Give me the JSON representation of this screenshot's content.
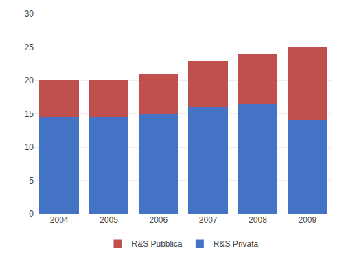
{
  "chart_data": {
    "type": "bar",
    "categories": [
      "2004",
      "2005",
      "2006",
      "2007",
      "2008",
      "2009"
    ],
    "series": [
      {
        "name": "R&S Privata",
        "color": "#4472C4",
        "values": [
          14.5,
          14.5,
          15.0,
          16.0,
          16.5,
          14.0
        ]
      },
      {
        "name": "R&S Pubblica",
        "color": "#C0504D",
        "values": [
          5.5,
          5.5,
          6.0,
          7.0,
          7.5,
          11.0
        ]
      }
    ],
    "stacked": true,
    "ylim": [
      0,
      30
    ],
    "yticks": [
      0,
      5,
      10,
      15,
      20,
      25,
      30
    ],
    "grid": true,
    "legend": "bottom"
  }
}
